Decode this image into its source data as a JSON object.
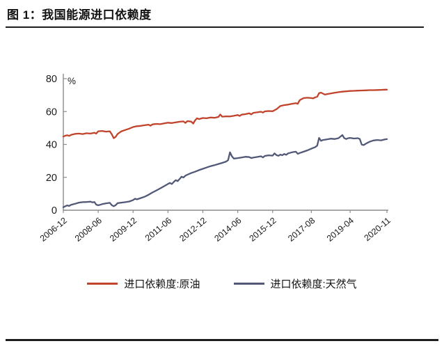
{
  "page": {
    "title": "图 1：我国能源进口依赖度"
  },
  "chart_data": {
    "type": "line",
    "title": "我国能源进口依赖度",
    "xlabel": "",
    "ylabel": "%",
    "ylim": [
      0,
      80
    ],
    "yticks": [
      0,
      20,
      40,
      60,
      80
    ],
    "grid": false,
    "legend_position": "bottom",
    "axis_color": "#8c8c8c",
    "text_color": "#1a1a1a",
    "x_start": "2006-12",
    "x_end": "2020-11",
    "x_range_months": [
      0,
      167
    ],
    "xticks": [
      {
        "month": 0,
        "label": "2006-12"
      },
      {
        "month": 18,
        "label": "2008-06"
      },
      {
        "month": 36,
        "label": "2009-12"
      },
      {
        "month": 54,
        "label": "2011-06"
      },
      {
        "month": 72,
        "label": "2012-12"
      },
      {
        "month": 90,
        "label": "2014-06"
      },
      {
        "month": 108,
        "label": "2015-12"
      },
      {
        "month": 128,
        "label": "2017-08"
      },
      {
        "month": 148,
        "label": "2019-04"
      },
      {
        "month": 167,
        "label": "2020-11"
      }
    ],
    "series": [
      {
        "name": "进口依赖度:原油",
        "color": "#c0432b",
        "points": [
          [
            0,
            44.8
          ],
          [
            1,
            45.3
          ],
          [
            2,
            45.6
          ],
          [
            3,
            45.2
          ],
          [
            4,
            45.8
          ],
          [
            6,
            46.4
          ],
          [
            8,
            46.6
          ],
          [
            10,
            46.3
          ],
          [
            12,
            46.8
          ],
          [
            14,
            46.6
          ],
          [
            16,
            47.1
          ],
          [
            17,
            46.6
          ],
          [
            18,
            48.0
          ],
          [
            20,
            48.2
          ],
          [
            22,
            47.8
          ],
          [
            24,
            48.0
          ],
          [
            25,
            46.2
          ],
          [
            26,
            43.8
          ],
          [
            27,
            44.6
          ],
          [
            28,
            46.4
          ],
          [
            30,
            48.0
          ],
          [
            32,
            48.8
          ],
          [
            34,
            49.6
          ],
          [
            36,
            50.6
          ],
          [
            38,
            51.1
          ],
          [
            40,
            51.3
          ],
          [
            42,
            51.7
          ],
          [
            44,
            52.0
          ],
          [
            45,
            51.4
          ],
          [
            46,
            52.2
          ],
          [
            48,
            52.5
          ],
          [
            50,
            52.3
          ],
          [
            52,
            52.8
          ],
          [
            54,
            53.2
          ],
          [
            56,
            53.0
          ],
          [
            58,
            53.4
          ],
          [
            60,
            53.8
          ],
          [
            62,
            54.0
          ],
          [
            63,
            53.1
          ],
          [
            64,
            54.2
          ],
          [
            66,
            53.9
          ],
          [
            67,
            52.7
          ],
          [
            68,
            54.6
          ],
          [
            69,
            55.9
          ],
          [
            70,
            55.4
          ],
          [
            72,
            56.1
          ],
          [
            74,
            55.9
          ],
          [
            76,
            56.4
          ],
          [
            78,
            56.2
          ],
          [
            80,
            56.7
          ],
          [
            81,
            58.2
          ],
          [
            82,
            56.9
          ],
          [
            84,
            57.1
          ],
          [
            86,
            57.0
          ],
          [
            88,
            57.4
          ],
          [
            90,
            57.9
          ],
          [
            91,
            57.3
          ],
          [
            92,
            58.1
          ],
          [
            94,
            58.4
          ],
          [
            96,
            58.9
          ],
          [
            97,
            58.3
          ],
          [
            98,
            59.2
          ],
          [
            100,
            59.5
          ],
          [
            102,
            59.9
          ],
          [
            103,
            59.4
          ],
          [
            104,
            60.1
          ],
          [
            106,
            60.3
          ],
          [
            108,
            60.2
          ],
          [
            110,
            61.4
          ],
          [
            112,
            63.4
          ],
          [
            114,
            63.9
          ],
          [
            116,
            64.2
          ],
          [
            118,
            64.7
          ],
          [
            120,
            65.1
          ],
          [
            121,
            64.7
          ],
          [
            122,
            66.9
          ],
          [
            124,
            68.2
          ],
          [
            126,
            68.4
          ],
          [
            128,
            68.2
          ],
          [
            129,
            68.0
          ],
          [
            130,
            68.7
          ],
          [
            131,
            69.0
          ],
          [
            132,
            71.2
          ],
          [
            133,
            71.5
          ],
          [
            134,
            70.9
          ],
          [
            135,
            70.3
          ],
          [
            136,
            70.6
          ],
          [
            138,
            71.0
          ],
          [
            140,
            71.4
          ],
          [
            142,
            71.8
          ],
          [
            144,
            72.1
          ],
          [
            146,
            72.3
          ],
          [
            148,
            72.5
          ],
          [
            150,
            72.6
          ],
          [
            152,
            72.7
          ],
          [
            154,
            72.8
          ],
          [
            156,
            72.9
          ],
          [
            158,
            73.0
          ],
          [
            160,
            73.0
          ],
          [
            162,
            73.1
          ],
          [
            164,
            73.2
          ],
          [
            166,
            73.3
          ],
          [
            167,
            73.3
          ]
        ]
      },
      {
        "name": "进口依赖度:天然气",
        "color": "#525876",
        "points": [
          [
            0,
            1.8
          ],
          [
            1,
            2.4
          ],
          [
            2,
            2.9
          ],
          [
            3,
            2.6
          ],
          [
            4,
            3.3
          ],
          [
            5,
            3.6
          ],
          [
            6,
            3.9
          ],
          [
            8,
            4.6
          ],
          [
            10,
            4.9
          ],
          [
            12,
            5.0
          ],
          [
            14,
            5.2
          ],
          [
            15,
            4.8
          ],
          [
            16,
            5.0
          ],
          [
            17,
            3.4
          ],
          [
            18,
            3.0
          ],
          [
            19,
            3.3
          ],
          [
            20,
            3.7
          ],
          [
            22,
            4.2
          ],
          [
            24,
            4.5
          ],
          [
            25,
            3.1
          ],
          [
            26,
            2.4
          ],
          [
            27,
            3.1
          ],
          [
            28,
            4.3
          ],
          [
            30,
            4.6
          ],
          [
            32,
            4.9
          ],
          [
            34,
            5.3
          ],
          [
            36,
            6.2
          ],
          [
            37,
            7.0
          ],
          [
            38,
            6.6
          ],
          [
            40,
            7.4
          ],
          [
            42,
            8.2
          ],
          [
            44,
            9.4
          ],
          [
            46,
            10.8
          ],
          [
            48,
            12.0
          ],
          [
            50,
            13.3
          ],
          [
            52,
            14.6
          ],
          [
            54,
            16.0
          ],
          [
            55,
            16.6
          ],
          [
            56,
            15.9
          ],
          [
            57,
            17.2
          ],
          [
            58,
            18.3
          ],
          [
            59,
            17.7
          ],
          [
            60,
            19.0
          ],
          [
            61,
            20.4
          ],
          [
            62,
            19.9
          ],
          [
            63,
            21.0
          ],
          [
            64,
            21.6
          ],
          [
            66,
            22.6
          ],
          [
            68,
            23.4
          ],
          [
            70,
            24.4
          ],
          [
            72,
            25.2
          ],
          [
            74,
            26.0
          ],
          [
            76,
            26.8
          ],
          [
            78,
            27.4
          ],
          [
            80,
            28.1
          ],
          [
            82,
            28.8
          ],
          [
            84,
            29.6
          ],
          [
            85,
            30.4
          ],
          [
            86,
            35.2
          ],
          [
            87,
            32.8
          ],
          [
            88,
            31.4
          ],
          [
            90,
            31.7
          ],
          [
            92,
            32.1
          ],
          [
            94,
            32.5
          ],
          [
            96,
            32.3
          ],
          [
            97,
            31.7
          ],
          [
            98,
            32.0
          ],
          [
            100,
            32.4
          ],
          [
            102,
            32.8
          ],
          [
            103,
            32.1
          ],
          [
            104,
            33.0
          ],
          [
            106,
            33.4
          ],
          [
            108,
            33.2
          ],
          [
            109,
            34.6
          ],
          [
            110,
            33.5
          ],
          [
            111,
            33.1
          ],
          [
            112,
            33.8
          ],
          [
            113,
            33.4
          ],
          [
            114,
            34.2
          ],
          [
            115,
            33.7
          ],
          [
            116,
            34.6
          ],
          [
            118,
            35.2
          ],
          [
            120,
            35.6
          ],
          [
            121,
            34.3
          ],
          [
            122,
            34.8
          ],
          [
            124,
            35.6
          ],
          [
            126,
            36.4
          ],
          [
            128,
            37.4
          ],
          [
            130,
            38.4
          ],
          [
            131,
            39.3
          ],
          [
            132,
            44.0
          ],
          [
            133,
            42.2
          ],
          [
            134,
            42.7
          ],
          [
            136,
            43.1
          ],
          [
            138,
            43.5
          ],
          [
            140,
            43.3
          ],
          [
            142,
            43.8
          ],
          [
            144,
            45.7
          ],
          [
            145,
            43.8
          ],
          [
            146,
            43.3
          ],
          [
            147,
            43.8
          ],
          [
            148,
            44.0
          ],
          [
            150,
            43.6
          ],
          [
            152,
            43.8
          ],
          [
            153,
            43.3
          ],
          [
            154,
            39.9
          ],
          [
            155,
            39.6
          ],
          [
            156,
            40.4
          ],
          [
            158,
            41.6
          ],
          [
            160,
            42.4
          ],
          [
            162,
            42.7
          ],
          [
            164,
            42.5
          ],
          [
            166,
            43.1
          ],
          [
            167,
            43.2
          ]
        ]
      }
    ]
  }
}
